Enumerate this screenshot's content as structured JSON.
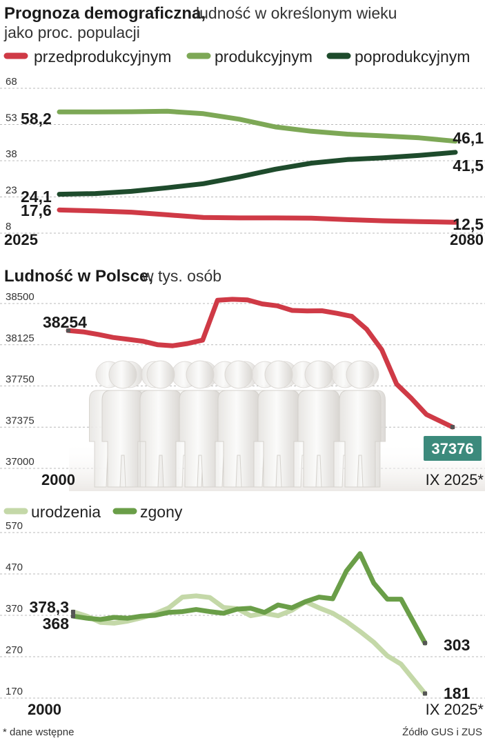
{
  "chart_data": [
    {
      "type": "line",
      "title": "Prognoza demograficzna,",
      "subtitle": "ludność w określonym wieku",
      "subtitle2": "jako proc. populacji",
      "yticks": [
        "68",
        "53",
        "38",
        "23",
        "8"
      ],
      "ylim": [
        8,
        68
      ],
      "xlim": [
        2025,
        2080
      ],
      "x_start_label": "2025",
      "x_end_label": "2080",
      "grid": true,
      "legend_position": "top",
      "series": [
        {
          "name": "przedprodukcyjnym",
          "color": "#cf3a46",
          "x": [
            2025,
            2030,
            2035,
            2040,
            2045,
            2050,
            2055,
            2060,
            2065,
            2070,
            2075,
            2080
          ],
          "values": [
            17.6,
            17.2,
            16.7,
            15.6,
            14.5,
            14.3,
            14.3,
            14.2,
            13.6,
            13.1,
            12.8,
            12.5
          ],
          "start_label": "17,6",
          "end_label": "12,5"
        },
        {
          "name": "produkcyjnym",
          "color": "#7da856",
          "x": [
            2025,
            2030,
            2035,
            2040,
            2045,
            2050,
            2055,
            2060,
            2065,
            2070,
            2075,
            2080
          ],
          "values": [
            58.2,
            58.2,
            58.3,
            58.5,
            57.5,
            55.2,
            52.0,
            50.2,
            49.0,
            48.3,
            47.5,
            46.1
          ],
          "start_label": "58,2",
          "end_label": "46,1"
        },
        {
          "name": "poprodukcyjnym",
          "color": "#1e4b2c",
          "x": [
            2025,
            2030,
            2035,
            2040,
            2045,
            2050,
            2055,
            2060,
            2065,
            2070,
            2075,
            2080
          ],
          "values": [
            24.1,
            24.4,
            25.3,
            26.8,
            28.5,
            31.3,
            34.5,
            37.0,
            38.5,
            39.2,
            40.2,
            41.5
          ],
          "start_label": "24,1",
          "end_label": "41,5"
        }
      ]
    },
    {
      "type": "line",
      "title": "Ludność w Polsce,",
      "subtitle": "w tys. osób",
      "yticks": [
        "38500",
        "38125",
        "37750",
        "37375",
        "37000"
      ],
      "ylim": [
        37000,
        38500
      ],
      "xlim": [
        2000,
        2025.75
      ],
      "x_start_label": "2000",
      "x_end_label": "IX 2025*",
      "grid": true,
      "series": [
        {
          "name": "",
          "color": "#cf3a46",
          "x": [
            2000,
            2001,
            2002,
            2003,
            2004,
            2005,
            2006,
            2007,
            2008,
            2009,
            2010,
            2011,
            2012,
            2013,
            2014,
            2015,
            2016,
            2017,
            2018,
            2019,
            2020,
            2021,
            2022,
            2023,
            2024,
            2025.75
          ],
          "values": [
            38254,
            38242,
            38219,
            38191,
            38174,
            38157,
            38125,
            38116,
            38136,
            38167,
            38530,
            38538,
            38533,
            38496,
            38479,
            38437,
            38433,
            38434,
            38411,
            38383,
            38265,
            38080,
            37767,
            37636,
            37490,
            37376
          ],
          "start_label": "38254",
          "end_label": "37376"
        }
      ]
    },
    {
      "type": "line",
      "yticks": [
        "570",
        "470",
        "370",
        "270",
        "170"
      ],
      "ylim": [
        170,
        570
      ],
      "xlim": [
        2000,
        2025.75
      ],
      "x_start_label": "2000",
      "x_end_label": "IX 2025*",
      "grid": true,
      "legend_position": "top-left",
      "series": [
        {
          "name": "urodzenia",
          "color": "#c4d8a8",
          "x": [
            2000,
            2001,
            2002,
            2003,
            2004,
            2005,
            2006,
            2007,
            2008,
            2009,
            2010,
            2011,
            2012,
            2013,
            2014,
            2015,
            2016,
            2017,
            2018,
            2019,
            2020,
            2021,
            2022,
            2023,
            2024,
            2025.75
          ],
          "values": [
            378.3,
            368,
            353,
            351,
            356,
            364,
            374,
            388,
            414,
            417,
            413,
            389,
            386,
            369,
            375,
            369,
            382,
            403,
            388,
            375,
            355,
            331,
            305,
            272,
            252,
            181
          ],
          "start_label": "378,3",
          "end_label": "181"
        },
        {
          "name": "zgony",
          "color": "#6a9e48",
          "x": [
            2000,
            2001,
            2002,
            2003,
            2004,
            2005,
            2006,
            2007,
            2008,
            2009,
            2010,
            2011,
            2012,
            2013,
            2014,
            2015,
            2016,
            2017,
            2018,
            2019,
            2020,
            2021,
            2022,
            2023,
            2024,
            2025.75
          ],
          "values": [
            368,
            363,
            360,
            365,
            363,
            368,
            370,
            377,
            379,
            384,
            379,
            375,
            385,
            387,
            377,
            395,
            388,
            403,
            414,
            410,
            477,
            519,
            448,
            409,
            409,
            303
          ],
          "start_label": "368",
          "end_label": "303"
        }
      ]
    }
  ],
  "footnote": "* dane wstępne",
  "source": "Źódło GUS i ZUS"
}
